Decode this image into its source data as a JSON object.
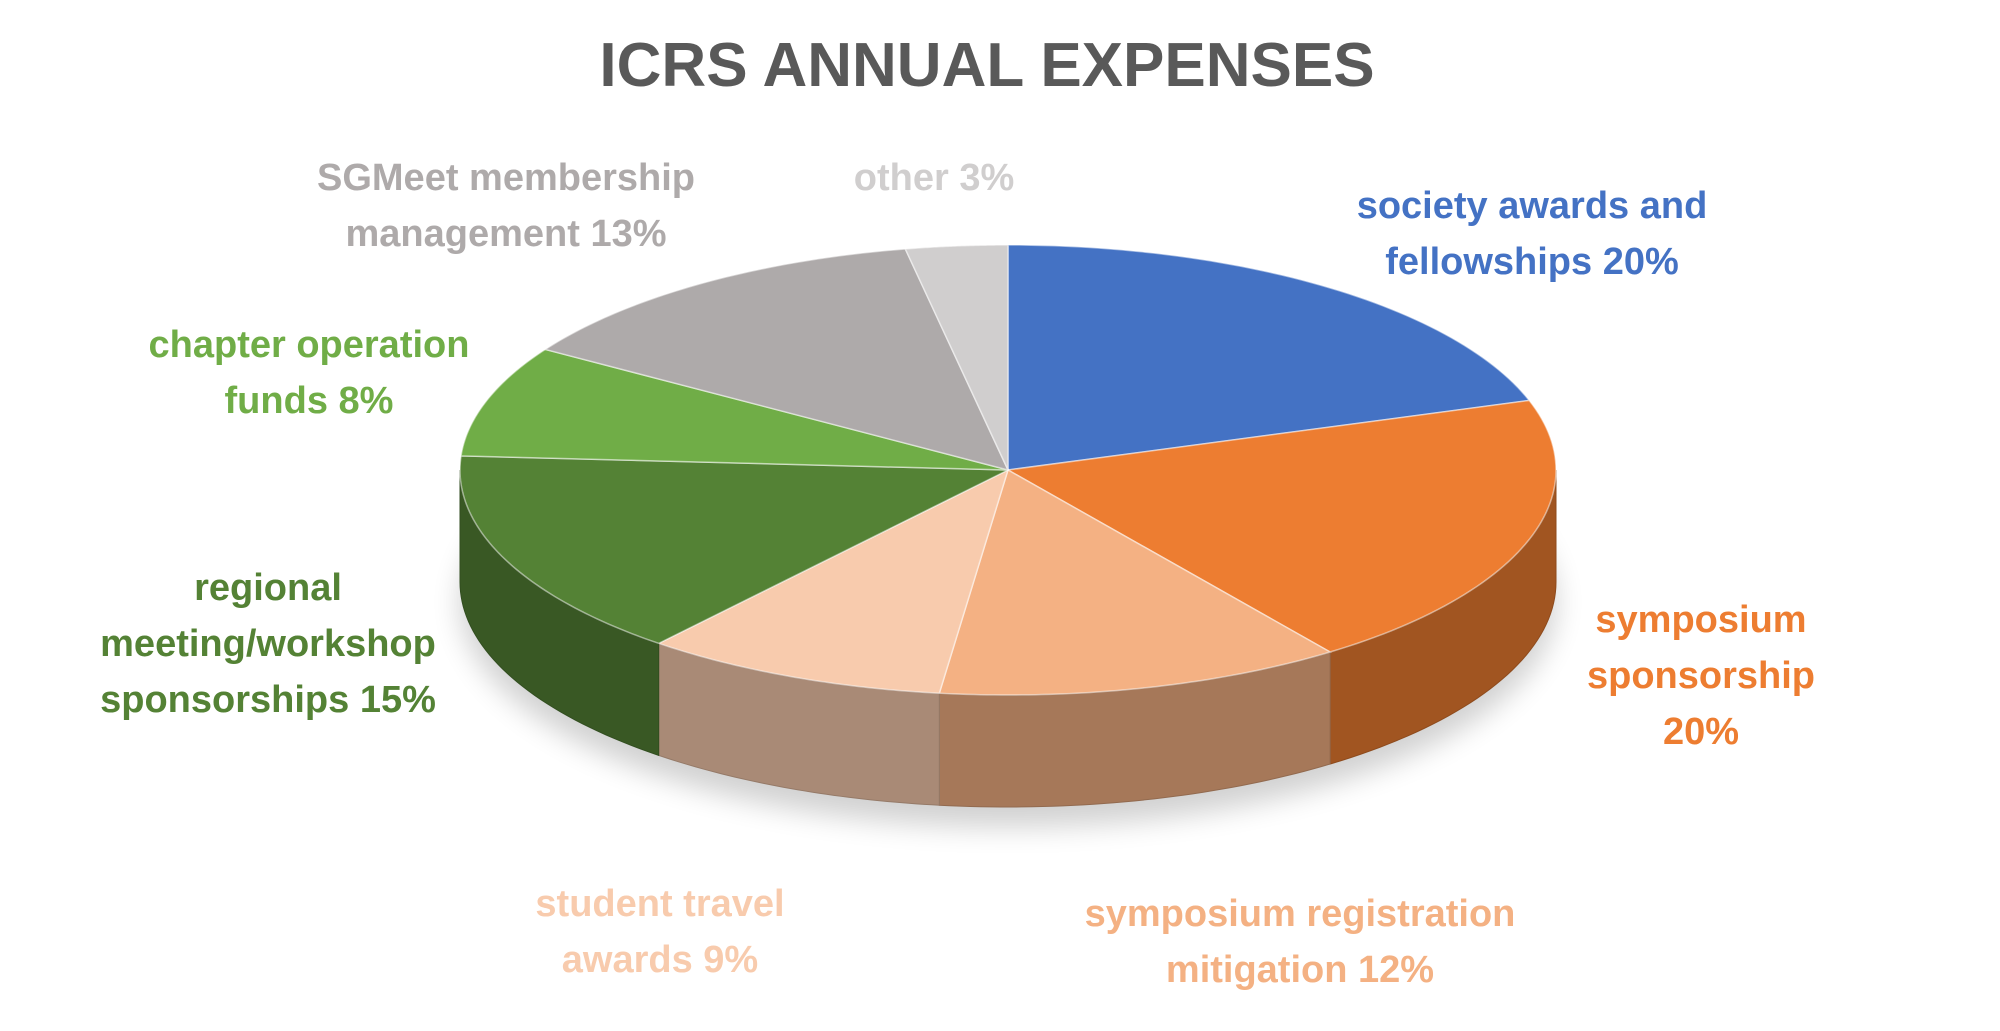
{
  "chart_data": {
    "type": "pie",
    "title": "ICRS ANNUAL EXPENSES",
    "categories": [
      "society awards and fellowships",
      "symposium sponsorship",
      "symposium registration mitigation",
      "student travel awards",
      "regional meeting/workshop sponsorships",
      "chapter operation funds",
      "SGMeet membership management",
      "other"
    ],
    "values": [
      20,
      20,
      12,
      9,
      15,
      8,
      13,
      3
    ],
    "value_labels": [
      "20%",
      "20%",
      "12%",
      "9%",
      "15%",
      "8%",
      "13%",
      "3%"
    ],
    "colors": [
      "#4472c4",
      "#ed7d31",
      "#f4b183",
      "#f8cbad",
      "#548235",
      "#70ad47",
      "#aeaaaa",
      "#d0cece"
    ]
  }
}
